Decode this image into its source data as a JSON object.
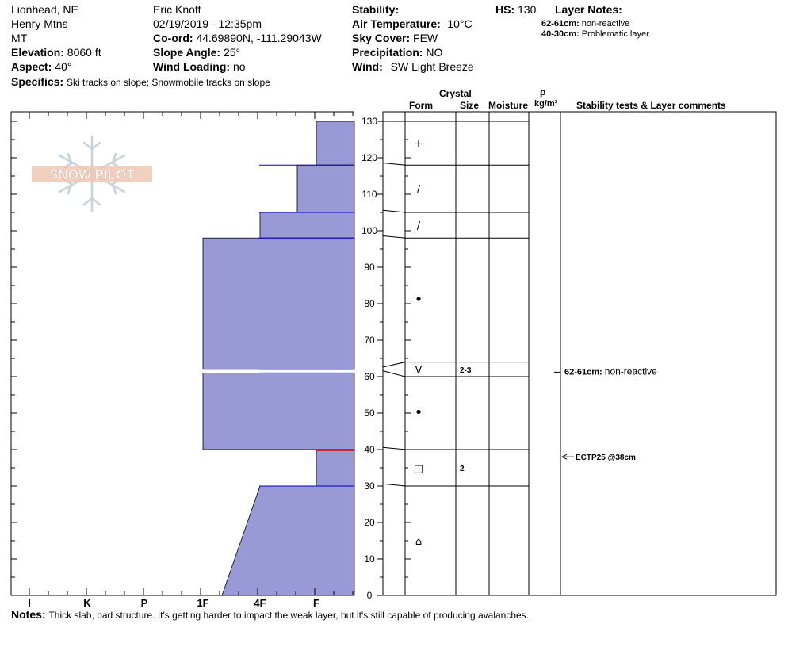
{
  "header": {
    "location": "Lionhead, NE",
    "range": "Henry Mtns",
    "state": "MT",
    "elevation_label": "Elevation:",
    "elevation_value": "8060 ft",
    "aspect_label": "Aspect:",
    "aspect_value": "40°",
    "observer": "Eric Knoff",
    "datetime": "02/19/2019 - 12:35pm",
    "coord_label": "Co-ord:",
    "coord_value": "44.69890N, -111.29043W",
    "slope_label": "Slope Angle:",
    "slope_value": "25°",
    "wind_loading_label": "Wind Loading:",
    "wind_loading_value": "no",
    "stability_label": "Stability:",
    "air_temp_label": "Air Temperature:",
    "air_temp_value": "-10°C",
    "sky_label": "Sky Cover:",
    "sky_value": "FEW",
    "precip_label": "Precipitation:",
    "precip_value": "NO",
    "wind_label": "Wind:",
    "wind_value": "SW Light Breeze",
    "hs_label": "HS:",
    "hs_value": "130",
    "layer_notes_title": "Layer Notes:",
    "layer_notes": [
      {
        "range": "62-61cm:",
        "text": "non-reactive"
      },
      {
        "range": "40-30cm:",
        "text": "Problematic layer"
      }
    ],
    "specifics_label": "Specifics:",
    "specifics_value": "Ski tracks on slope; Snowmobile tracks on slope"
  },
  "logo_text": "SNOW PILOT",
  "columns": {
    "crystal": "Crystal",
    "form": "Form",
    "size": "Size",
    "moisture": "Moisture",
    "rho": "ρ",
    "density": "kg/m³",
    "stability": "Stability tests & Layer comments"
  },
  "notes_label": "Notes:",
  "notes_value": "Thick slab, bad structure. It's getting harder to impact the weak layer, but it's still capable of producing avalanches.",
  "chart_data": {
    "type": "bar",
    "title": "",
    "x_categories": [
      "I",
      "K",
      "P",
      "1F",
      "4F",
      "F"
    ],
    "y_ticks": [
      0,
      10,
      20,
      30,
      40,
      50,
      60,
      70,
      80,
      90,
      100,
      110,
      120,
      130
    ],
    "ylim": [
      0,
      130
    ],
    "hardness_layers": [
      {
        "top": 130,
        "bottom": 118,
        "hardness": "F"
      },
      {
        "top": 118,
        "bottom": 105,
        "hardness": "4F+"
      },
      {
        "top": 105,
        "bottom": 98,
        "hardness": "4F"
      },
      {
        "top": 98,
        "bottom": 62,
        "hardness": "1F"
      },
      {
        "top": 61,
        "bottom": 40,
        "hardness": "1F"
      },
      {
        "top": 40,
        "bottom": 30,
        "hardness": "F"
      },
      {
        "top": 30,
        "bottom": 0,
        "hardness_top": "4F",
        "hardness_bottom": "1F-"
      }
    ],
    "strata": [
      {
        "top": 130,
        "bottom": 118,
        "form": "+",
        "size": ""
      },
      {
        "top": 118,
        "bottom": 105,
        "form": "/",
        "size": ""
      },
      {
        "top": 105,
        "bottom": 98,
        "form": "/",
        "size": ""
      },
      {
        "top": 98,
        "bottom": 64,
        "form": "•",
        "size": ""
      },
      {
        "top": 64,
        "bottom": 60,
        "form": "V",
        "size": "2-3"
      },
      {
        "top": 60,
        "bottom": 40,
        "form": "•",
        "size": ""
      },
      {
        "top": 40,
        "bottom": 30,
        "form": "□",
        "size": "2"
      },
      {
        "top": 30,
        "bottom": 0,
        "form": "⌂",
        "size": ""
      }
    ],
    "layer_comments": [
      {
        "depth": 61,
        "range": "62-61cm:",
        "text": "non-reactive"
      }
    ],
    "tests": [
      {
        "depth": 38,
        "text": "ECTP25 @38cm"
      }
    ],
    "colors": {
      "fill": "#9999d6",
      "edge": "#0000cc",
      "weak": "#cc0000"
    }
  }
}
